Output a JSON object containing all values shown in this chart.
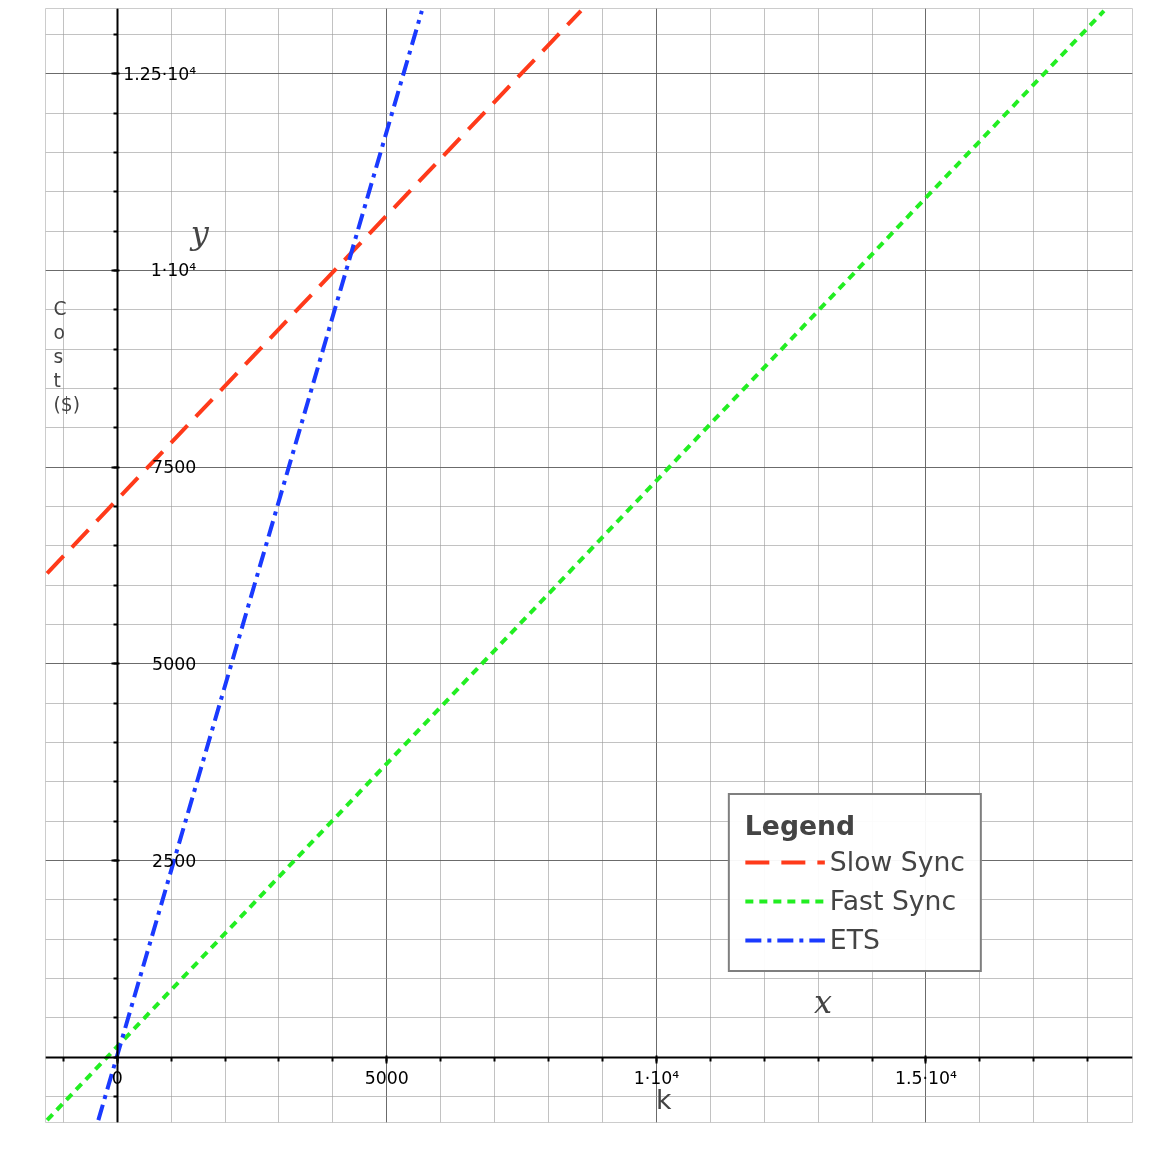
{
  "chart_data": {
    "type": "line",
    "xlabel": "k",
    "ylabel": "Cost ($)",
    "legend_title": "Legend",
    "series": [
      {
        "name": "Slow Sync",
        "color": "#ff3a1a",
        "x": [
          -1300,
          8600
        ],
        "values": [
          6150,
          13300
        ],
        "line_style": "dashed"
      },
      {
        "name": "Fast Sync",
        "color": "#22ee22",
        "x": [
          -1300,
          18300
        ],
        "values": [
          -800,
          13300
        ],
        "line_style": "dotted"
      },
      {
        "name": "ETS",
        "color": "#1a3aff",
        "x": [
          -350,
          5650
        ],
        "values": [
          -800,
          13300
        ],
        "line_style": "dashdot"
      }
    ],
    "xlim": [
      -1330,
      18830
    ],
    "ylim": [
      -830,
      13330
    ],
    "xticks": [
      {
        "value": 0,
        "label": "0"
      },
      5000,
      {
        "value": 10000,
        "label": "1·10⁴"
      },
      {
        "value": 15000,
        "label": "1.5·10⁴"
      }
    ],
    "yticks": [
      2500,
      5000,
      7500,
      {
        "value": 10000,
        "label": "1·10⁴"
      },
      {
        "value": 12500,
        "label": "1.25·10⁴"
      }
    ],
    "annotations": [
      "x",
      "y"
    ],
    "grid": true,
    "legend": "bottom right",
    "marker": "none"
  }
}
